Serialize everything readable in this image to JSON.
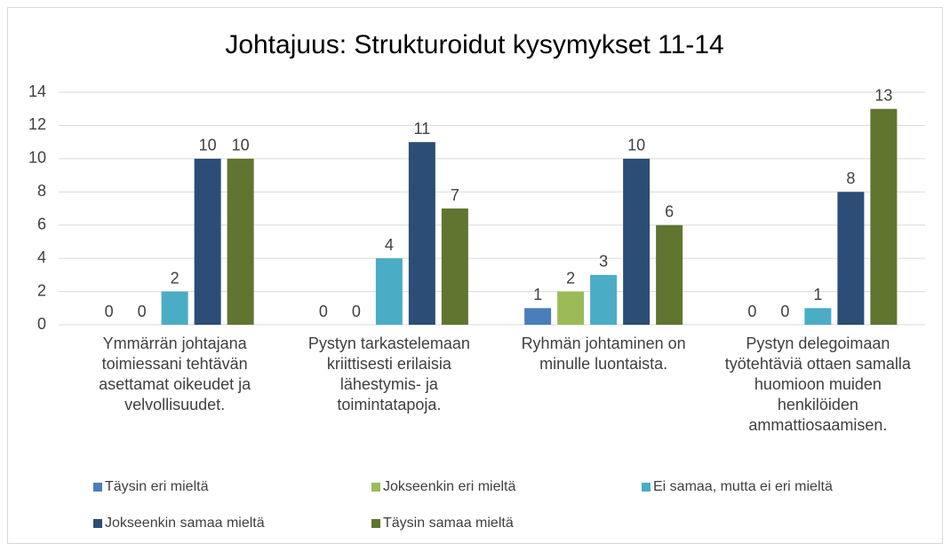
{
  "chart_data": {
    "type": "bar",
    "title": "Johtajuus: Strukturoidut kysymykset 11-14",
    "categories": [
      "Ymmärrän johtajana toimiessani tehtävän asettamat oikeudet ja velvollisuudet.",
      "Pystyn tarkastelemaan kriittisesti erilaisia lähestymis- ja toimintatapoja.",
      "Ryhmän johtaminen on minulle luontaista.",
      "Pystyn delegoimaan työtehtäviä ottaen samalla huomioon muiden henkilöiden ammattiosaamisen."
    ],
    "series": [
      {
        "name": "Täysin eri mieltä",
        "color": "#4a7ebb",
        "values": [
          0,
          0,
          1,
          0
        ]
      },
      {
        "name": "Jokseenkin eri mieltä",
        "color": "#9bbb59",
        "values": [
          0,
          0,
          2,
          0
        ]
      },
      {
        "name": "Ei samaa, mutta ei eri mieltä",
        "color": "#4bacc6",
        "values": [
          2,
          4,
          3,
          1
        ]
      },
      {
        "name": "Jokseenkin samaa mieltä",
        "color": "#2c4d75",
        "values": [
          10,
          11,
          10,
          8
        ]
      },
      {
        "name": "Täysin samaa mieltä",
        "color": "#5f7530",
        "values": [
          10,
          7,
          6,
          13
        ]
      }
    ],
    "ylim": [
      0,
      14
    ],
    "yticks": [
      0,
      2,
      4,
      6,
      8,
      10,
      12,
      14
    ],
    "grid": true,
    "legend": "bottom"
  }
}
